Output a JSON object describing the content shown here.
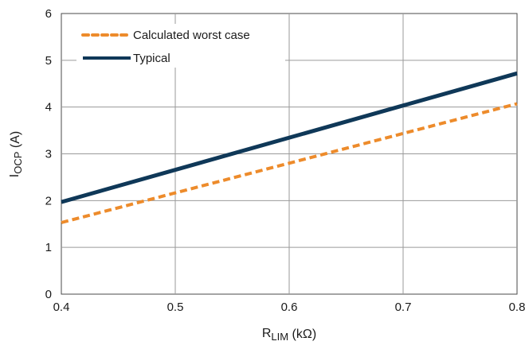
{
  "chart_data": {
    "type": "line",
    "title": "",
    "xlabel": {
      "main": "R",
      "sub": "LIM",
      "unit": " (kΩ)"
    },
    "ylabel": {
      "main": "I",
      "sub": "OCP",
      "unit": " (A)"
    },
    "xlim": [
      0.4,
      0.8
    ],
    "ylim": [
      0,
      6
    ],
    "xticks": [
      0.4,
      0.5,
      0.6,
      0.7,
      0.8
    ],
    "xtick_labels": [
      "0.4",
      "0.5",
      "0.6",
      "0.7",
      "0.8"
    ],
    "yticks": [
      0,
      1,
      2,
      3,
      4,
      5,
      6
    ],
    "ytick_labels": [
      "0",
      "1",
      "2",
      "3",
      "4",
      "5",
      "6"
    ],
    "grid": true,
    "legend_position": "top-left",
    "series": [
      {
        "name": "Calculated worst case",
        "x": [
          0.4,
          0.8
        ],
        "y": [
          1.53,
          4.07
        ],
        "color": "#ed8b2b",
        "style": "dashed"
      },
      {
        "name": "Typical",
        "x": [
          0.4,
          0.8
        ],
        "y": [
          1.97,
          4.72
        ],
        "color": "#0f3858",
        "style": "solid"
      }
    ]
  }
}
